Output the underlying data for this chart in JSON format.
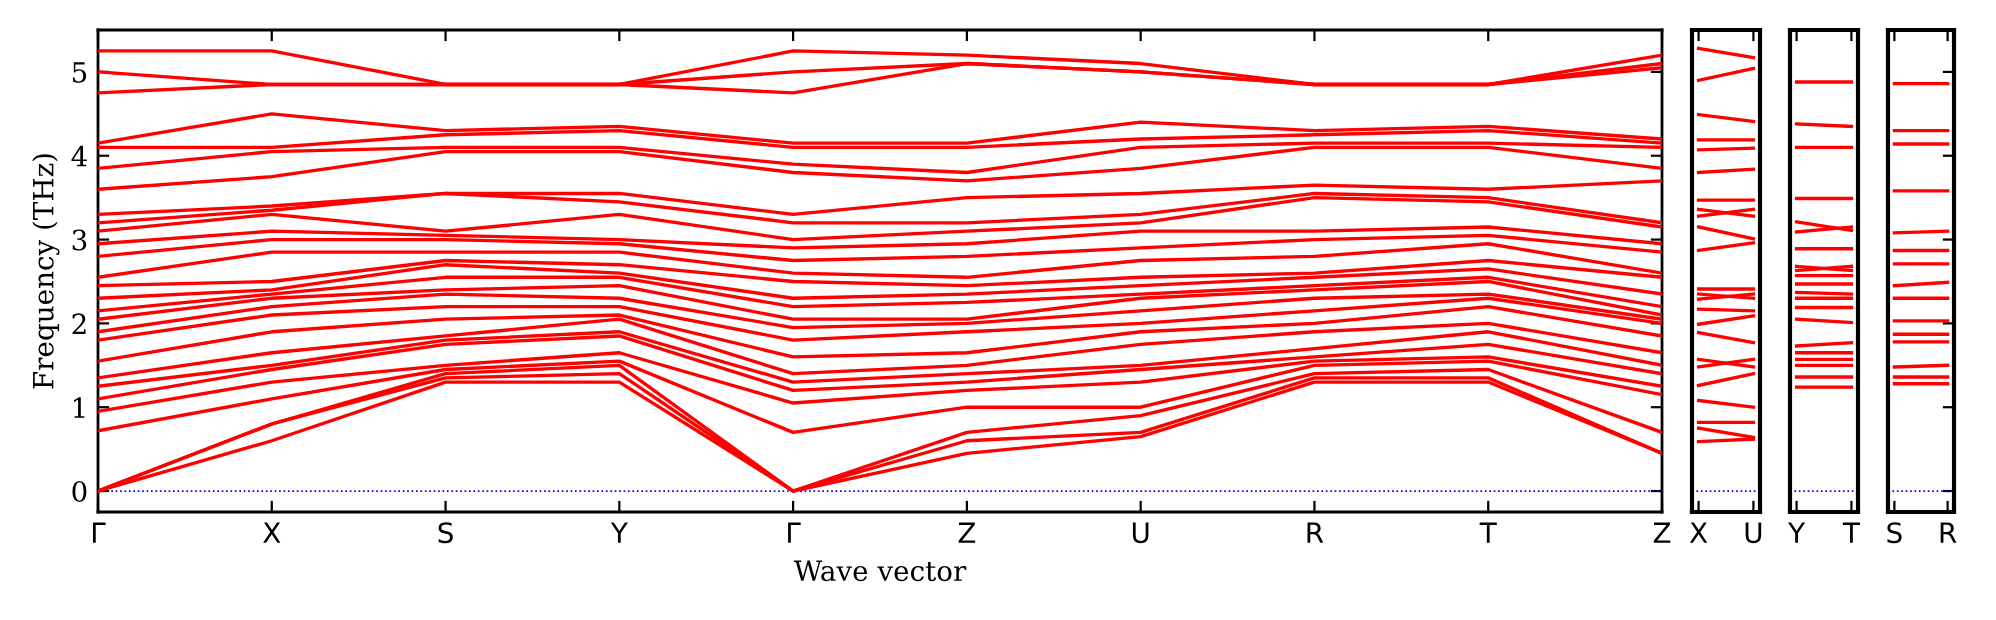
{
  "chart_data": [
    {
      "type": "line",
      "xlabel": "Wave vector",
      "ylabel": "Frequency (THz)",
      "ylim": [
        -0.25,
        5.5
      ],
      "categories": [
        "Γ",
        "X",
        "S",
        "Y",
        "Γ",
        "Z",
        "U",
        "R",
        "T",
        "Z"
      ],
      "yticks": [
        0,
        1,
        2,
        3,
        4,
        5
      ],
      "ref_lines": [
        {
          "axis": "y",
          "value": 0,
          "color": "#0000ff",
          "line_style": "dotted"
        }
      ],
      "series": [
        {
          "color": "#ff0000",
          "values": [
            0,
            0.6,
            1.3,
            1.3,
            0,
            0.45,
            0.65,
            1.3,
            1.3,
            0.45
          ]
        },
        {
          "color": "#ff0000",
          "values": [
            0,
            0.8,
            1.35,
            1.4,
            0,
            0.6,
            0.7,
            1.35,
            1.35,
            0.45
          ]
        },
        {
          "color": "#ff0000",
          "values": [
            0,
            0.8,
            1.4,
            1.5,
            0,
            0.7,
            0.9,
            1.4,
            1.45,
            0.7
          ]
        },
        {
          "color": "#ff0000",
          "values": [
            0.72,
            1.1,
            1.45,
            1.55,
            0.7,
            1.0,
            1.0,
            1.5,
            1.55,
            1.15
          ]
        },
        {
          "color": "#ff0000",
          "values": [
            0.95,
            1.3,
            1.5,
            1.65,
            1.05,
            1.2,
            1.3,
            1.55,
            1.6,
            1.25
          ]
        },
        {
          "color": "#ff0000",
          "values": [
            1.1,
            1.45,
            1.75,
            1.85,
            1.2,
            1.3,
            1.45,
            1.6,
            1.75,
            1.4
          ]
        },
        {
          "color": "#ff0000",
          "values": [
            1.25,
            1.5,
            1.8,
            1.9,
            1.3,
            1.4,
            1.5,
            1.7,
            1.9,
            1.5
          ]
        },
        {
          "color": "#ff0000",
          "values": [
            1.35,
            1.65,
            1.85,
            2.05,
            1.4,
            1.5,
            1.75,
            1.9,
            2.0,
            1.65
          ]
        },
        {
          "color": "#ff0000",
          "values": [
            1.55,
            1.9,
            2.05,
            2.1,
            1.6,
            1.65,
            1.9,
            2.0,
            2.2,
            1.85
          ]
        },
        {
          "color": "#ff0000",
          "values": [
            1.8,
            2.1,
            2.2,
            2.2,
            1.8,
            1.9,
            2.0,
            2.15,
            2.3,
            2.0
          ]
        },
        {
          "color": "#ff0000",
          "values": [
            1.9,
            2.2,
            2.35,
            2.3,
            1.95,
            2.0,
            2.15,
            2.3,
            2.35,
            2.05
          ]
        },
        {
          "color": "#ff0000",
          "values": [
            2.05,
            2.3,
            2.4,
            2.45,
            2.05,
            2.05,
            2.3,
            2.4,
            2.5,
            2.1
          ]
        },
        {
          "color": "#ff0000",
          "values": [
            2.15,
            2.35,
            2.55,
            2.55,
            2.2,
            2.25,
            2.35,
            2.45,
            2.55,
            2.2
          ]
        },
        {
          "color": "#ff0000",
          "values": [
            2.3,
            2.4,
            2.7,
            2.6,
            2.3,
            2.35,
            2.45,
            2.55,
            2.65,
            2.35
          ]
        },
        {
          "color": "#ff0000",
          "values": [
            2.45,
            2.5,
            2.75,
            2.7,
            2.5,
            2.45,
            2.55,
            2.6,
            2.75,
            2.55
          ]
        },
        {
          "color": "#ff0000",
          "values": [
            2.55,
            2.85,
            2.85,
            2.85,
            2.6,
            2.55,
            2.75,
            2.8,
            2.95,
            2.6
          ]
        },
        {
          "color": "#ff0000",
          "values": [
            2.8,
            3.0,
            3.0,
            2.95,
            2.75,
            2.8,
            2.9,
            3.0,
            3.05,
            2.85
          ]
        },
        {
          "color": "#ff0000",
          "values": [
            2.95,
            3.1,
            3.05,
            3.0,
            2.9,
            2.95,
            3.1,
            3.1,
            3.15,
            2.95
          ]
        },
        {
          "color": "#ff0000",
          "values": [
            3.1,
            3.3,
            3.1,
            3.3,
            3.0,
            3.1,
            3.2,
            3.5,
            3.45,
            3.15
          ]
        },
        {
          "color": "#ff0000",
          "values": [
            3.2,
            3.35,
            3.55,
            3.45,
            3.2,
            3.2,
            3.3,
            3.55,
            3.5,
            3.2
          ]
        },
        {
          "color": "#ff0000",
          "values": [
            3.3,
            3.4,
            3.55,
            3.55,
            3.3,
            3.5,
            3.55,
            3.65,
            3.6,
            3.7
          ]
        },
        {
          "color": "#ff0000",
          "values": [
            3.6,
            3.75,
            4.05,
            4.05,
            3.8,
            3.7,
            3.85,
            4.1,
            4.1,
            3.85
          ]
        },
        {
          "color": "#ff0000",
          "values": [
            3.85,
            4.05,
            4.1,
            4.1,
            3.9,
            3.8,
            4.1,
            4.15,
            4.15,
            4.1
          ]
        },
        {
          "color": "#ff0000",
          "values": [
            4.1,
            4.1,
            4.25,
            4.3,
            4.1,
            4.1,
            4.2,
            4.25,
            4.3,
            4.15
          ]
        },
        {
          "color": "#ff0000",
          "values": [
            4.15,
            4.5,
            4.3,
            4.35,
            4.15,
            4.15,
            4.4,
            4.3,
            4.35,
            4.2
          ]
        },
        {
          "color": "#ff0000",
          "values": [
            4.75,
            4.85,
            4.85,
            4.85,
            4.75,
            5.1,
            5.0,
            4.85,
            4.85,
            5.05
          ]
        },
        {
          "color": "#ff0000",
          "values": [
            5.0,
            4.85,
            4.85,
            4.85,
            5.0,
            5.1,
            5.0,
            4.85,
            4.85,
            5.1
          ]
        },
        {
          "color": "#ff0000",
          "values": [
            5.25,
            5.25,
            4.85,
            4.85,
            5.25,
            5.2,
            5.1,
            4.85,
            4.85,
            5.2
          ]
        }
      ]
    },
    {
      "type": "line",
      "tick_labels": "x",
      "ylim": [
        -0.25,
        5.5
      ],
      "categories": [
        "X",
        "U"
      ],
      "ref_lines": [
        {
          "axis": "y",
          "value": 0,
          "color": "#0000ff",
          "line_style": "dotted"
        }
      ],
      "series": [
        {
          "color": "#ff0000",
          "values": [
            5.28,
            5.17
          ]
        },
        {
          "color": "#ff0000",
          "values": [
            4.9,
            5.04
          ]
        },
        {
          "color": "#ff0000",
          "values": [
            4.49,
            4.41
          ]
        },
        {
          "color": "#ff0000",
          "values": [
            4.19,
            4.19
          ]
        },
        {
          "color": "#ff0000",
          "values": [
            4.07,
            4.09
          ]
        },
        {
          "color": "#ff0000",
          "values": [
            3.8,
            3.84
          ]
        },
        {
          "color": "#ff0000",
          "values": [
            3.47,
            3.47
          ]
        },
        {
          "color": "#ff0000",
          "values": [
            3.36,
            3.28
          ]
        },
        {
          "color": "#ff0000",
          "values": [
            3.28,
            3.36
          ]
        },
        {
          "color": "#ff0000",
          "values": [
            3.15,
            3.01
          ]
        },
        {
          "color": "#ff0000",
          "values": [
            2.87,
            2.96
          ]
        },
        {
          "color": "#ff0000",
          "values": [
            2.41,
            2.41
          ]
        },
        {
          "color": "#ff0000",
          "values": [
            2.35,
            2.3
          ]
        },
        {
          "color": "#ff0000",
          "values": [
            2.29,
            2.35
          ]
        },
        {
          "color": "#ff0000",
          "values": [
            2.17,
            2.15
          ]
        },
        {
          "color": "#ff0000",
          "values": [
            1.99,
            2.09
          ]
        },
        {
          "color": "#ff0000",
          "values": [
            1.89,
            1.77
          ]
        },
        {
          "color": "#ff0000",
          "values": [
            1.57,
            1.48
          ]
        },
        {
          "color": "#ff0000",
          "values": [
            1.48,
            1.57
          ]
        },
        {
          "color": "#ff0000",
          "values": [
            1.26,
            1.4
          ]
        },
        {
          "color": "#ff0000",
          "values": [
            1.08,
            1.0
          ]
        },
        {
          "color": "#ff0000",
          "values": [
            0.82,
            0.82
          ]
        },
        {
          "color": "#ff0000",
          "values": [
            0.75,
            0.64
          ]
        },
        {
          "color": "#ff0000",
          "values": [
            0.59,
            0.62
          ]
        }
      ]
    },
    {
      "type": "line",
      "tick_labels": "x",
      "ylim": [
        -0.25,
        5.5
      ],
      "categories": [
        "Y",
        "T"
      ],
      "ref_lines": [
        {
          "axis": "y",
          "value": 0,
          "color": "#0000ff",
          "line_style": "dotted"
        }
      ],
      "series": [
        {
          "color": "#ff0000",
          "values": [
            4.88,
            4.88
          ]
        },
        {
          "color": "#ff0000",
          "values": [
            4.38,
            4.35
          ]
        },
        {
          "color": "#ff0000",
          "values": [
            4.1,
            4.1
          ]
        },
        {
          "color": "#ff0000",
          "values": [
            3.49,
            3.49
          ]
        },
        {
          "color": "#ff0000",
          "values": [
            3.21,
            3.11
          ]
        },
        {
          "color": "#ff0000",
          "values": [
            3.09,
            3.15
          ]
        },
        {
          "color": "#ff0000",
          "values": [
            2.89,
            2.89
          ]
        },
        {
          "color": "#ff0000",
          "values": [
            2.68,
            2.63
          ]
        },
        {
          "color": "#ff0000",
          "values": [
            2.63,
            2.68
          ]
        },
        {
          "color": "#ff0000",
          "values": [
            2.57,
            2.57
          ]
        },
        {
          "color": "#ff0000",
          "values": [
            2.47,
            2.47
          ]
        },
        {
          "color": "#ff0000",
          "values": [
            2.37,
            2.35
          ]
        },
        {
          "color": "#ff0000",
          "values": [
            2.3,
            2.3
          ]
        },
        {
          "color": "#ff0000",
          "values": [
            2.19,
            2.19
          ]
        },
        {
          "color": "#ff0000",
          "values": [
            2.05,
            2.01
          ]
        },
        {
          "color": "#ff0000",
          "values": [
            1.73,
            1.77
          ]
        },
        {
          "color": "#ff0000",
          "values": [
            1.65,
            1.65
          ]
        },
        {
          "color": "#ff0000",
          "values": [
            1.57,
            1.57
          ]
        },
        {
          "color": "#ff0000",
          "values": [
            1.5,
            1.5
          ]
        },
        {
          "color": "#ff0000",
          "values": [
            1.36,
            1.36
          ]
        },
        {
          "color": "#ff0000",
          "values": [
            1.24,
            1.24
          ]
        }
      ]
    },
    {
      "type": "line",
      "tick_labels": "x",
      "ylim": [
        -0.25,
        5.5
      ],
      "categories": [
        "S",
        "R"
      ],
      "yticks": [
        {
          "value": 0,
          "label": null
        },
        {
          "value": 1,
          "label": null
        },
        {
          "value": 2,
          "label": null
        },
        {
          "value": 3,
          "label": null
        },
        {
          "value": 4,
          "label": null
        },
        {
          "value": 5,
          "label": null
        }
      ],
      "ref_lines": [
        {
          "axis": "y",
          "value": 0,
          "color": "#0000ff",
          "line_style": "dotted"
        }
      ],
      "series": [
        {
          "color": "#ff0000",
          "values": [
            4.86,
            4.86
          ]
        },
        {
          "color": "#ff0000",
          "values": [
            4.3,
            4.3
          ]
        },
        {
          "color": "#ff0000",
          "values": [
            4.14,
            4.14
          ]
        },
        {
          "color": "#ff0000",
          "values": [
            3.58,
            3.58
          ]
        },
        {
          "color": "#ff0000",
          "values": [
            3.08,
            3.1
          ]
        },
        {
          "color": "#ff0000",
          "values": [
            2.87,
            2.87
          ]
        },
        {
          "color": "#ff0000",
          "values": [
            2.71,
            2.71
          ]
        },
        {
          "color": "#ff0000",
          "values": [
            2.45,
            2.49
          ]
        },
        {
          "color": "#ff0000",
          "values": [
            2.3,
            2.3
          ]
        },
        {
          "color": "#ff0000",
          "values": [
            2.03,
            2.03
          ]
        },
        {
          "color": "#ff0000",
          "values": [
            1.87,
            1.87
          ]
        },
        {
          "color": "#ff0000",
          "values": [
            1.78,
            1.78
          ]
        },
        {
          "color": "#ff0000",
          "values": [
            1.48,
            1.5
          ]
        },
        {
          "color": "#ff0000",
          "values": [
            1.36,
            1.36
          ]
        },
        {
          "color": "#ff0000",
          "values": [
            1.28,
            1.28
          ]
        }
      ]
    }
  ]
}
